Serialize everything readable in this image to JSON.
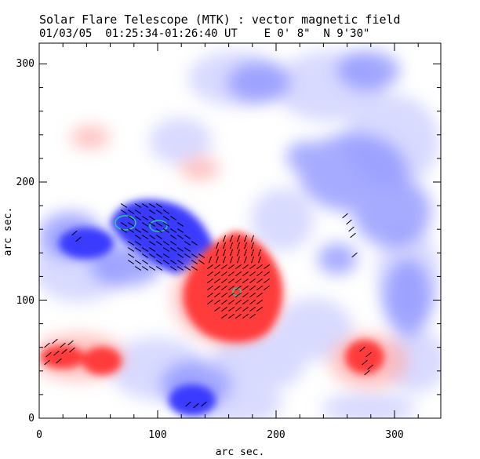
{
  "header": {
    "title": "Solar Flare Telescope (MTK) : vector magnetic field",
    "subtitle": "01/03/05  01:25:34-01:26:40 UT    E 0' 8\"  N 9'30\""
  },
  "axes": {
    "xlabel": "arc sec.",
    "ylabel": "arc sec.",
    "xlim": [
      0,
      340
    ],
    "ylim": [
      0,
      320
    ],
    "xticks": [
      "0",
      "100",
      "200",
      "300"
    ],
    "yticks": [
      "0",
      "100",
      "200",
      "300"
    ]
  },
  "colors": {
    "positive_polarity": "#ff3b3b",
    "negative_polarity": "#3b3bff",
    "contour": "#22cc99",
    "vectors": "#000000"
  },
  "icons": {
    "image": "magnetogram-image"
  }
}
